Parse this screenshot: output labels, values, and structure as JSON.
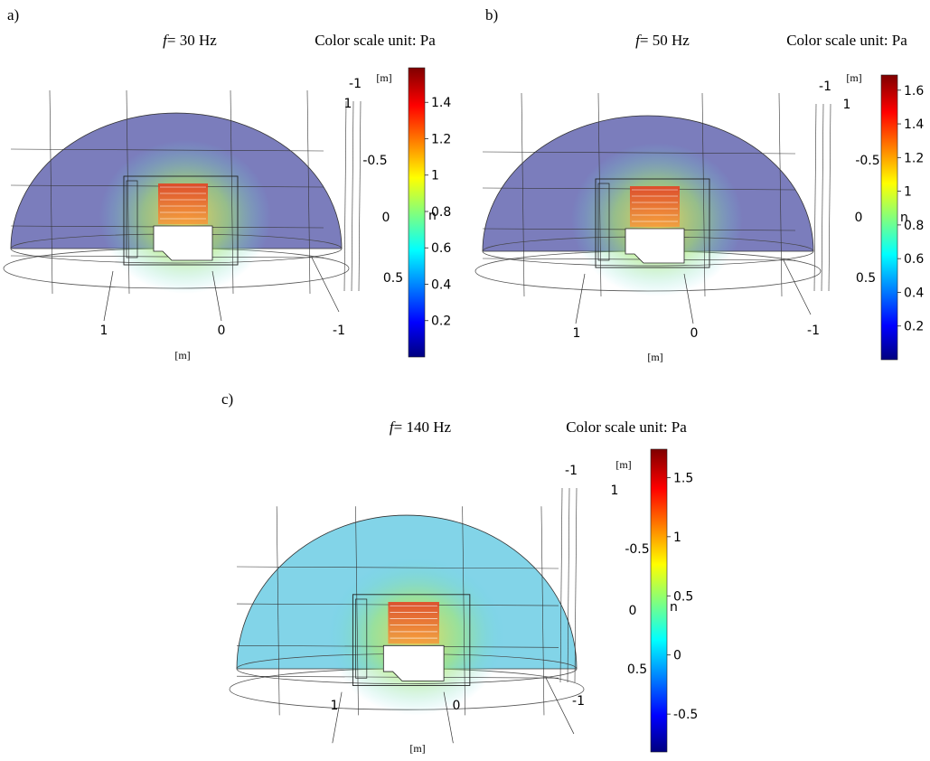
{
  "panels": [
    {
      "label": "a)",
      "freq_symbol": "f",
      "freq_text": "= 30 Hz",
      "colorbar": {
        "title": "Color scale unit: Pa",
        "range": [
          0,
          1.59
        ],
        "ticks": [
          0.2,
          0.4,
          0.6,
          0.8,
          1,
          1.2,
          1.4
        ]
      },
      "axes": {
        "bottom_ticks": [
          "1",
          "0",
          "-1"
        ],
        "bottom_unit": "[m]",
        "side_ticks": [
          "-1",
          "1",
          "-0.5",
          "0",
          "0.5"
        ],
        "side_unit": "[m]",
        "fragment": "n"
      }
    },
    {
      "label": "b)",
      "freq_symbol": "f",
      "freq_text": "= 50 Hz",
      "colorbar": {
        "title": "Color scale unit: Pa",
        "range": [
          0,
          1.69
        ],
        "ticks": [
          0.2,
          0.4,
          0.6,
          0.8,
          1,
          1.2,
          1.4,
          1.6
        ]
      },
      "axes": {
        "bottom_ticks": [
          "1",
          "0",
          "-1"
        ],
        "bottom_unit": "[m]",
        "side_ticks": [
          "-1",
          "1",
          "-0.5",
          "0",
          "0.5"
        ],
        "side_unit": "[m]",
        "fragment": "n"
      }
    },
    {
      "label": "c)",
      "freq_symbol": "f",
      "freq_text": "= 140 Hz",
      "colorbar": {
        "title": "Color scale unit: Pa",
        "range": [
          -0.82,
          1.74
        ],
        "ticks": [
          -0.5,
          0,
          0.5,
          1,
          1.5
        ]
      },
      "axes": {
        "bottom_ticks": [
          "1",
          "0",
          "-1"
        ],
        "bottom_unit": "[m]",
        "side_ticks": [
          "-1",
          "1",
          "-0.5",
          "0",
          "0.5"
        ],
        "side_unit": "[m]",
        "fragment": "n"
      }
    }
  ]
}
